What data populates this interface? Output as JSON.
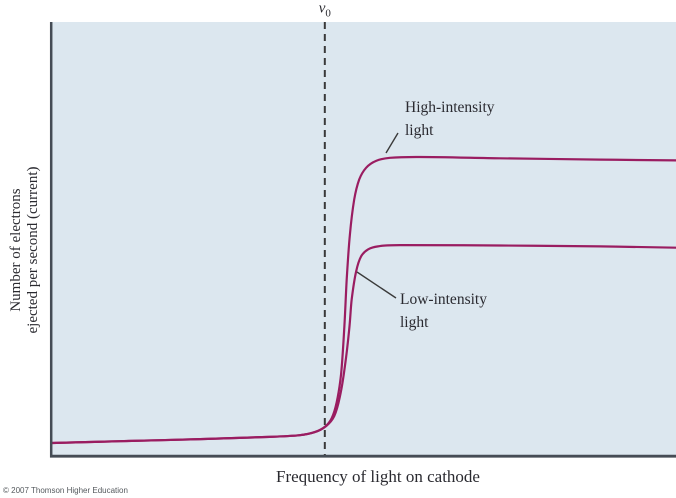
{
  "chart_data": {
    "type": "line",
    "title": "",
    "xlabel": "Frequency of light on cathode",
    "ylabel": "Number of electrons\nejected per second (current)",
    "x_ticks": [],
    "y_ticks": [],
    "grid": false,
    "legend_position": "inline-annotations",
    "axis_scale_note": "qualitative sketch; no numeric ticks shown, series values are normalized 0-1 of plot extents",
    "threshold": {
      "symbol": "ν",
      "subscript": "0",
      "x": 0.439
    },
    "series": [
      {
        "name": "High-intensity light",
        "plateau_level": 0.687,
        "x": [
          0.003,
          0.112,
          0.24,
          0.351,
          0.399,
          0.423,
          0.439,
          0.45,
          0.458,
          0.465,
          0.47,
          0.474,
          0.479,
          0.486,
          0.494,
          0.505,
          0.521,
          0.543,
          0.591,
          0.719,
          0.879,
          1.0
        ],
        "y": [
          0.03,
          0.034,
          0.039,
          0.044,
          0.048,
          0.055,
          0.067,
          0.087,
          0.124,
          0.189,
          0.292,
          0.407,
          0.51,
          0.591,
          0.637,
          0.664,
          0.68,
          0.687,
          0.689,
          0.686,
          0.683,
          0.681
        ]
      },
      {
        "name": "Low-intensity light",
        "plateau_level": 0.485,
        "x": [
          0.003,
          0.112,
          0.24,
          0.351,
          0.399,
          0.423,
          0.441,
          0.454,
          0.463,
          0.471,
          0.478,
          0.482,
          0.489,
          0.497,
          0.508,
          0.524,
          0.559,
          0.719,
          0.879,
          1.0
        ],
        "y": [
          0.03,
          0.034,
          0.039,
          0.044,
          0.048,
          0.055,
          0.069,
          0.092,
          0.136,
          0.205,
          0.292,
          0.361,
          0.425,
          0.46,
          0.476,
          0.483,
          0.486,
          0.485,
          0.483,
          0.48
        ]
      }
    ],
    "annotations": [
      {
        "text": "High-intensity\nlight",
        "points_to": "high-intensity curve plateau"
      },
      {
        "text": "Low-intensity\nlight",
        "points_to": "low-intensity curve rise"
      }
    ]
  },
  "colors": {
    "plot_background": "#DCE7EF",
    "curve": "#9A1D61",
    "axis": "#454C55",
    "dashed_line": "#3A3A3A",
    "leader_line": "#3A3A3A",
    "text": "#2A2A30"
  },
  "footer": {
    "copyright": "© 2007 Thomson Higher Education"
  }
}
